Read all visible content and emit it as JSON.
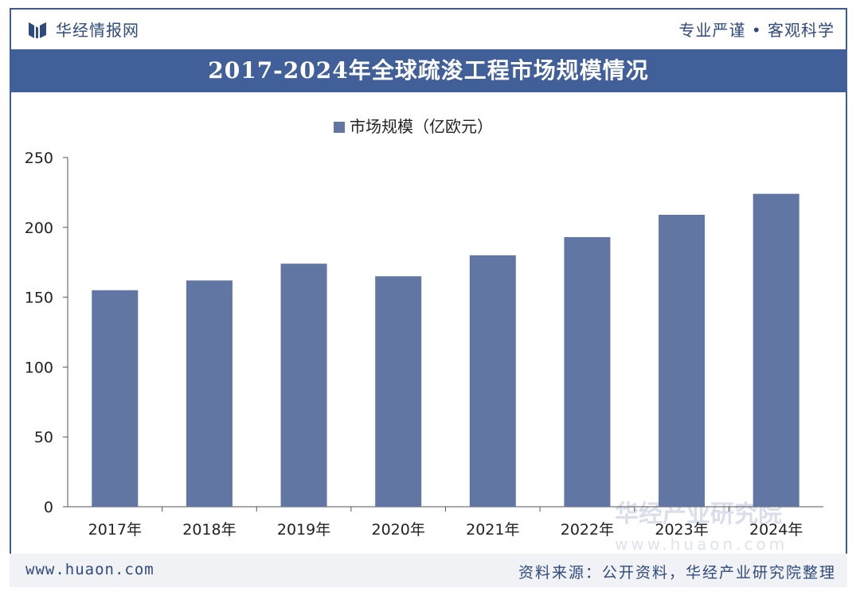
{
  "header": {
    "brand": "华经情报网",
    "tagline": "专业严谨 • 客观科学"
  },
  "title": "2017-2024年全球疏浚工程市场规模情况",
  "footer": {
    "website": "www.huaon.com",
    "source": "资料来源：公开资料，华经产业研究院整理"
  },
  "watermark": {
    "name": "华经产业研究院",
    "url": "www.huaon.com"
  },
  "colors": {
    "bar": "#6176a2",
    "title_bg": "#41609a",
    "brand": "#2f4a7d"
  },
  "chart_data": {
    "type": "bar",
    "title": "2017-2024年全球疏浚工程市场规模情况",
    "categories": [
      "2017年",
      "2018年",
      "2019年",
      "2020年",
      "2021年",
      "2022年",
      "2023年",
      "2024年"
    ],
    "series": [
      {
        "name": "市场规模（亿欧元）",
        "values": [
          155,
          162,
          174,
          165,
          180,
          193,
          209,
          224
        ]
      }
    ],
    "xlabel": "",
    "ylabel": "",
    "ylim": [
      0,
      250
    ],
    "yticks": [
      0,
      50,
      100,
      150,
      200,
      250
    ],
    "legend_position": "top-center",
    "grid": false
  }
}
